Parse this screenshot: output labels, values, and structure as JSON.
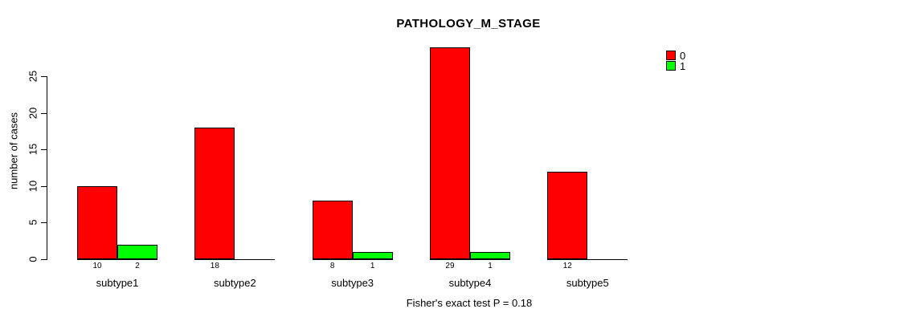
{
  "title": "PATHOLOGY_M_STAGE",
  "caption": "Fisher's exact test P = 0.18",
  "colors": {
    "series0": "#FF0000",
    "series1": "#00FF00",
    "axis": "#000000",
    "background": "#FFFFFF"
  },
  "legend": {
    "position": "top-right",
    "entries": [
      {
        "label": "0",
        "color": "#FF0000"
      },
      {
        "label": "1",
        "color": "#00FF00"
      }
    ]
  },
  "chart_data": {
    "type": "bar",
    "title": "PATHOLOGY_M_STAGE",
    "categories": [
      "subtype1",
      "subtype2",
      "subtype3",
      "subtype4",
      "subtype5"
    ],
    "series": [
      {
        "name": "0",
        "color": "#FF0000",
        "values": [
          10,
          18,
          8,
          29,
          12
        ]
      },
      {
        "name": "1",
        "color": "#00FF00",
        "values": [
          2,
          0,
          1,
          1,
          0
        ]
      }
    ],
    "bar_count_labels": [
      [
        "10",
        "2"
      ],
      [
        "18",
        ""
      ],
      [
        "8",
        "1"
      ],
      [
        "29",
        "1"
      ],
      [
        "12",
        ""
      ]
    ],
    "xlabel": "",
    "ylabel": "number of cases",
    "ylim": [
      0,
      29
    ],
    "yticks": [
      0,
      5,
      10,
      15,
      20,
      25
    ],
    "grid": false,
    "legend_position": "top-right",
    "annotation": "Fisher's exact test P = 0.18"
  }
}
